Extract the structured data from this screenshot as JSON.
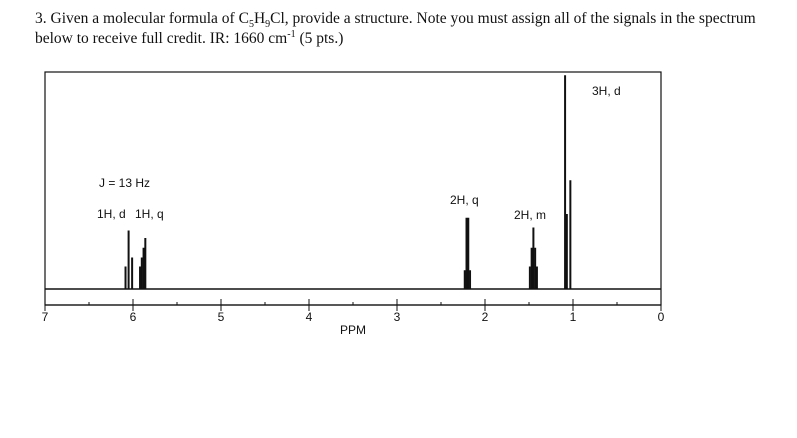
{
  "question": {
    "number": "3.",
    "text_before_formula": "Given a molecular formula of",
    "formula_c": "C",
    "formula_c_sub": "5",
    "formula_h": "H",
    "formula_h_sub": "9",
    "formula_cl": "Cl,",
    "text_after_formula": "provide a structure. Note you must assign all of the signals in the spectrum below to receive full credit. IR: 1660 cm",
    "ir_superscript": "-1",
    "points": "(5 pts.)"
  },
  "chart_data": {
    "type": "line",
    "title": "",
    "xlabel": "PPM",
    "ylabel": "",
    "xlim": [
      7,
      0
    ],
    "x_reversed": true,
    "grid": false,
    "ticks": [
      "7",
      "6",
      "5",
      "4",
      "3",
      "2",
      "1",
      "0"
    ],
    "peaks": [
      {
        "ppm": 6.05,
        "lines": [
          {
            "offset": -0.04,
            "h": 0.42
          },
          {
            "offset": 0.0,
            "h": 0.78
          },
          {
            "offset": 0.035,
            "h": 0.3
          }
        ]
      },
      {
        "ppm": 5.88,
        "lines": [
          {
            "offset": -0.02,
            "h": 0.68
          },
          {
            "offset": 0.0,
            "h": 0.55
          },
          {
            "offset": 0.02,
            "h": 0.42
          },
          {
            "offset": 0.04,
            "h": 0.3
          }
        ]
      },
      {
        "ppm": 2.2,
        "lines": [
          {
            "offset": -0.03,
            "h": 0.25
          },
          {
            "offset": -0.01,
            "h": 0.95
          },
          {
            "offset": 0.01,
            "h": 0.95
          },
          {
            "offset": 0.03,
            "h": 0.25
          }
        ]
      },
      {
        "ppm": 1.45,
        "lines": [
          {
            "offset": -0.04,
            "h": 0.3
          },
          {
            "offset": -0.02,
            "h": 0.55
          },
          {
            "offset": 0.0,
            "h": 0.82
          },
          {
            "offset": 0.02,
            "h": 0.55
          },
          {
            "offset": 0.04,
            "h": 0.3
          }
        ]
      },
      {
        "ppm": 1.05,
        "lines": [
          {
            "offset": -0.02,
            "h": 1.45
          },
          {
            "offset": 0.02,
            "h": 1.0
          }
        ]
      },
      {
        "ppm": 1.09,
        "lines": [
          {
            "offset": 0.0,
            "h": 2.85
          }
        ]
      }
    ],
    "annotations": [
      {
        "text": "J = 13 Hz"
      },
      {
        "text": "1H, d"
      },
      {
        "text": "1H, q"
      },
      {
        "text": "2H, q"
      },
      {
        "text": "2H, m"
      },
      {
        "text": "3H, d"
      }
    ]
  }
}
